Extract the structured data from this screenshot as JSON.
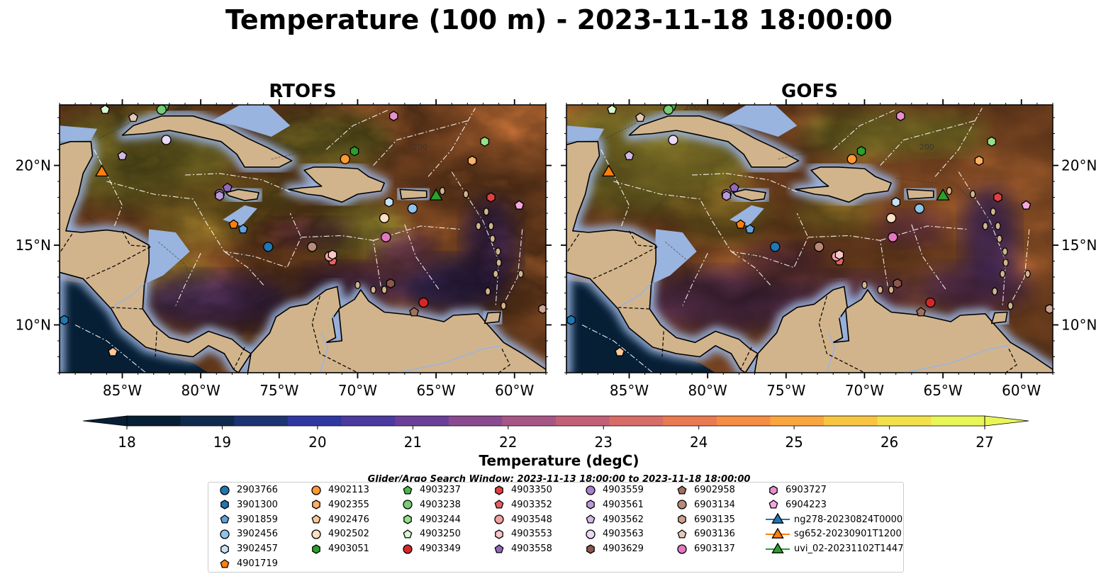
{
  "title": "Temperature (100 m) - 2023-11-18 18:00:00",
  "panels": [
    {
      "title": "RTOFS",
      "model": "rtofs"
    },
    {
      "title": "GOFS",
      "model": "gofs"
    }
  ],
  "colors": {
    "ocean_cmap": [
      "#061f35",
      "#0f2a4d",
      "#1e3373",
      "#2f37a0",
      "#4b3a9f",
      "#6a3f98",
      "#8a4a8f",
      "#a65685",
      "#c2607a",
      "#d86d68",
      "#ea7a52",
      "#f68d44",
      "#f9a540",
      "#f7c542",
      "#f3e14b",
      "#e8f657"
    ],
    "land": "#d2b48c",
    "shelf": "#9ab4e0",
    "deep_pacific": "#061f35"
  },
  "map": {
    "lon_range": [
      -89,
      -58
    ],
    "lat_range": [
      7,
      23.8
    ],
    "lon_ticks": [
      -85,
      -80,
      -75,
      -70,
      -65,
      -60
    ],
    "lon_tick_labels": [
      "85°W",
      "80°W",
      "75°W",
      "70°W",
      "65°W",
      "60°W"
    ],
    "lat_ticks": [
      10,
      15,
      20
    ],
    "lat_tick_labels": [
      "10°N",
      "15°N",
      "20°N"
    ],
    "contour_labels": [
      "1000",
      "200"
    ]
  },
  "colorbar": {
    "min": 18,
    "max": 27,
    "ticks": [
      "18",
      "19",
      "20",
      "21",
      "22",
      "23",
      "24",
      "25",
      "26",
      "27"
    ],
    "label": "Temperature (degC)",
    "extend": "both"
  },
  "search_window": "Glider/Argo Search Window: 2023-11-13 18:00:00 to 2023-11-18 18:00:00",
  "legend": [
    {
      "id": "2903766",
      "marker": "circle",
      "color": "#1f77b4",
      "lon": -75.7,
      "lat": 14.9
    },
    {
      "id": "3901300",
      "marker": "hexagon",
      "color": "#1f77b4",
      "lon": -88.7,
      "lat": 10.3
    },
    {
      "id": "3901859",
      "marker": "pentagon",
      "color": "#5fa2dd",
      "lon": -77.3,
      "lat": 16.0
    },
    {
      "id": "3902456",
      "marker": "circle",
      "color": "#8fc3ea",
      "lon": -66.5,
      "lat": 17.3
    },
    {
      "id": "3902457",
      "marker": "hexagon",
      "color": "#c6e2f5",
      "lon": -68.0,
      "lat": 17.7
    },
    {
      "id": "4901719",
      "marker": "pentagon",
      "color": "#ff7f0e",
      "lon": -77.9,
      "lat": 16.3
    },
    {
      "id": "4902113",
      "marker": "circle",
      "color": "#ff9933",
      "lon": -70.8,
      "lat": 20.4
    },
    {
      "id": "4902355",
      "marker": "hexagon",
      "color": "#ffb066",
      "lon": -62.7,
      "lat": 20.3
    },
    {
      "id": "4902476",
      "marker": "pentagon",
      "color": "#ffc799",
      "lon": -85.6,
      "lat": 8.3
    },
    {
      "id": "4902502",
      "marker": "circle",
      "color": "#ffe0c2",
      "lon": -68.3,
      "lat": 16.7
    },
    {
      "id": "4903051",
      "marker": "hexagon",
      "color": "#2ca02c",
      "lon": -70.2,
      "lat": 20.9
    },
    {
      "id": "4903237",
      "marker": "pentagon",
      "color": "#4cb84c",
      "lon": -82.3,
      "lat": 23.7
    },
    {
      "id": "4903238",
      "marker": "circle",
      "color": "#77cc77",
      "lon": -82.5,
      "lat": 23.5
    },
    {
      "id": "4903244",
      "marker": "hexagon",
      "color": "#98df8a",
      "lon": -61.9,
      "lat": 21.5
    },
    {
      "id": "4903250",
      "marker": "pentagon",
      "color": "#d9f5d2",
      "lon": -86.1,
      "lat": 23.5
    },
    {
      "id": "4903349",
      "marker": "circle",
      "color": "#d62728",
      "lon": -65.8,
      "lat": 11.4
    },
    {
      "id": "4903350",
      "marker": "hexagon",
      "color": "#e04040",
      "lon": -61.5,
      "lat": 18.0
    },
    {
      "id": "4903352",
      "marker": "pentagon",
      "color": "#e86060",
      "lon": -71.6,
      "lat": 14.0
    },
    {
      "id": "4903548",
      "marker": "circle",
      "color": "#f2a0a0",
      "lon": -71.8,
      "lat": 14.3
    },
    {
      "id": "4903553",
      "marker": "hexagon",
      "color": "#f8c8c8",
      "lon": -71.6,
      "lat": 14.4
    },
    {
      "id": "4903558",
      "marker": "pentagon",
      "color": "#9467bd",
      "lon": -78.3,
      "lat": 18.6
    },
    {
      "id": "4903559",
      "marker": "circle",
      "color": "#a880cc",
      "lon": -78.8,
      "lat": 18.2
    },
    {
      "id": "4903561",
      "marker": "hexagon",
      "color": "#bc9ad9",
      "lon": -78.8,
      "lat": 18.1
    },
    {
      "id": "4903562",
      "marker": "pentagon",
      "color": "#d2b8e6",
      "lon": -85.0,
      "lat": 20.6
    },
    {
      "id": "4903563",
      "marker": "circle",
      "color": "#ead8f4",
      "lon": -82.2,
      "lat": 21.6
    },
    {
      "id": "4903629",
      "marker": "hexagon",
      "color": "#8c564b",
      "lon": -67.9,
      "lat": 12.6
    },
    {
      "id": "6902958",
      "marker": "pentagon",
      "color": "#a0705f",
      "lon": -66.4,
      "lat": 10.8
    },
    {
      "id": "6903134",
      "marker": "circle",
      "color": "#b88a78",
      "lon": -72.9,
      "lat": 14.9
    },
    {
      "id": "6903135",
      "marker": "hexagon",
      "color": "#cca390",
      "lon": -58.2,
      "lat": 11.0
    },
    {
      "id": "6903136",
      "marker": "pentagon",
      "color": "#e6c8b8",
      "lon": -84.3,
      "lat": 23.0
    },
    {
      "id": "6903137",
      "marker": "circle",
      "color": "#e377c2",
      "lon": -68.2,
      "lat": 15.5
    },
    {
      "id": "6903727",
      "marker": "hexagon",
      "color": "#ea8fcf",
      "lon": -67.7,
      "lat": 23.1
    },
    {
      "id": "6904223",
      "marker": "pentagon",
      "color": "#f5a8e0",
      "lon": -59.7,
      "lat": 17.5
    },
    {
      "id": "ng278-20230824T0000",
      "marker": "triangle",
      "color": "#1f77b4",
      "lon": null,
      "lat": null
    },
    {
      "id": "sg652-20230901T1200",
      "marker": "triangle",
      "color": "#ff7f0e",
      "lon": -86.3,
      "lat": 19.6
    },
    {
      "id": "uvi_02-20231102T1447",
      "marker": "triangle",
      "color": "#2ca02c",
      "lon": -65.0,
      "lat": 18.1
    }
  ]
}
